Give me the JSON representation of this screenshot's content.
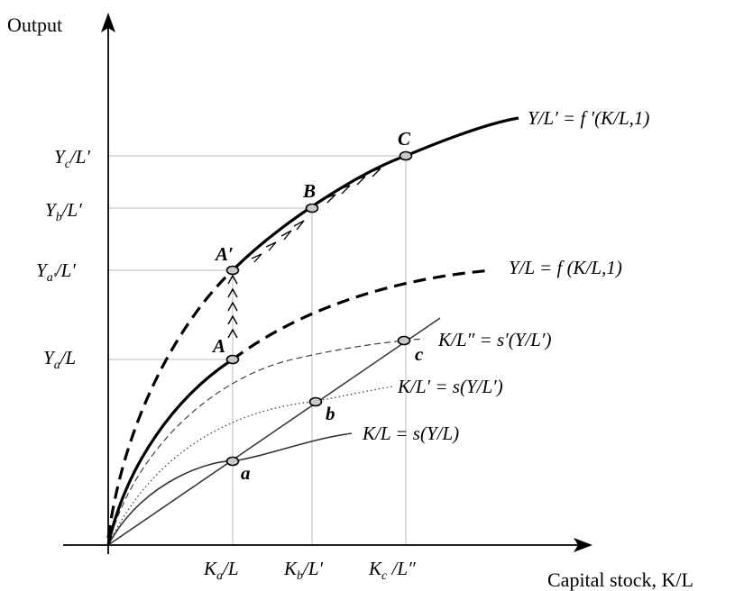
{
  "axes": {
    "y_title": "Output",
    "x_title": "Capital stock, K/L"
  },
  "x_ticks": [
    {
      "main": "K",
      "sub": "a",
      "rest": "/L"
    },
    {
      "main": "K",
      "sub": "b",
      "rest": "/L′"
    },
    {
      "main": "K",
      "sub": "c",
      "rest": " /L″"
    }
  ],
  "y_ticks": [
    {
      "main": "Y",
      "sub": "c",
      "rest": "/L′"
    },
    {
      "main": "Y",
      "sub": "b",
      "rest": "/L′"
    },
    {
      "main": "Y",
      "sub": "a′",
      "rest": "/L′"
    },
    {
      "main": "Y",
      "sub": "a",
      "rest": "/L"
    }
  ],
  "curve_labels": {
    "f_prime": "Y/L′ = f ′(K/L,1)",
    "f": "Y/L = f (K/L,1)",
    "s_prime": "K/L″ = s′(Y/L′)",
    "s_mid": "K/L′ = s(Y/L′)",
    "s": "K/L = s(Y/L)"
  },
  "point_labels": {
    "A": "A",
    "A_prime": "A′",
    "B": "B",
    "C": "C",
    "a": "a",
    "b": "b",
    "c": "c"
  }
}
